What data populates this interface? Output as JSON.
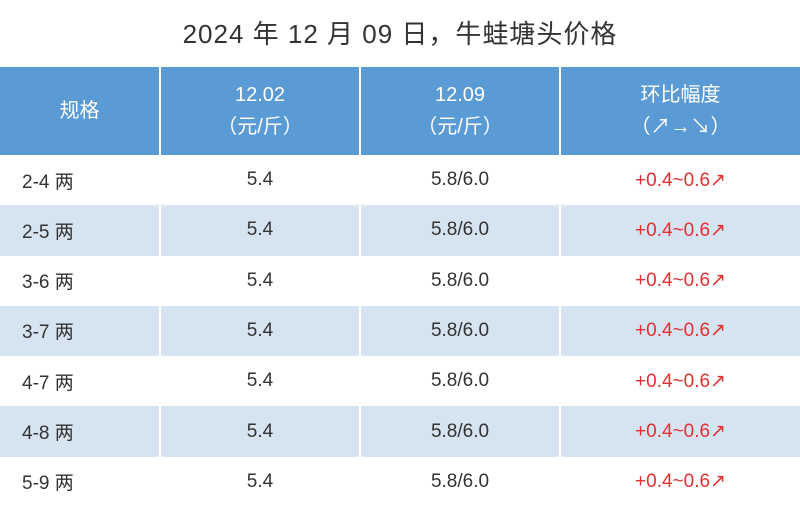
{
  "title": "2024 年 12 月 09 日，牛蛙塘头价格",
  "table": {
    "type": "table",
    "header_bg": "#5b9bd5",
    "header_color": "#ffffff",
    "row_odd_bg": "#ffffff",
    "row_even_bg": "#d6e4f2",
    "text_color": "#333333",
    "change_color": "#e03030",
    "font_size_header": 20,
    "font_size_body": 19,
    "columns": [
      {
        "key": "spec",
        "label_l1": "规格",
        "label_l2": "",
        "width": "20%",
        "align": "left"
      },
      {
        "key": "p1",
        "label_l1": "12.02",
        "label_l2": "（元/斤）",
        "width": "25%",
        "align": "center"
      },
      {
        "key": "p2",
        "label_l1": "12.09",
        "label_l2": "（元/斤）",
        "width": "25%",
        "align": "center"
      },
      {
        "key": "change",
        "label_l1": "环比幅度",
        "label_l2": "（↗→↘）",
        "width": "30%",
        "align": "center"
      }
    ],
    "rows": [
      {
        "spec": "2-4 两",
        "p1": "5.4",
        "p2": "5.8/6.0",
        "change": "+0.4~0.6↗"
      },
      {
        "spec": "2-5 两",
        "p1": "5.4",
        "p2": "5.8/6.0",
        "change": "+0.4~0.6↗"
      },
      {
        "spec": "3-6 两",
        "p1": "5.4",
        "p2": "5.8/6.0",
        "change": "+0.4~0.6↗"
      },
      {
        "spec": "3-7 两",
        "p1": "5.4",
        "p2": "5.8/6.0",
        "change": "+0.4~0.6↗"
      },
      {
        "spec": "4-7 两",
        "p1": "5.4",
        "p2": "5.8/6.0",
        "change": "+0.4~0.6↗"
      },
      {
        "spec": "4-8 两",
        "p1": "5.4",
        "p2": "5.8/6.0",
        "change": "+0.4~0.6↗"
      },
      {
        "spec": "5-9 两",
        "p1": "5.4",
        "p2": "5.8/6.0",
        "change": "+0.4~0.6↗"
      }
    ]
  }
}
